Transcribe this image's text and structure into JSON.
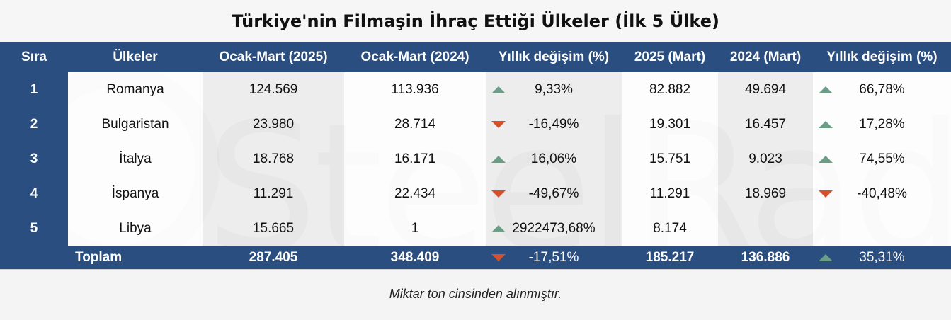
{
  "title": "Türkiye'nin Filmaşin İhraç Ettiği Ülkeler (İlk 5 Ülke)",
  "watermark": "SteelRadar",
  "headers": [
    "Sıra",
    "Ülkeler",
    "Ocak-Mart (2025)",
    "Ocak-Mart (2024)",
    "Yıllık değişim (%)",
    "2025 (Mart)",
    "2024 (Mart)",
    "Yıllık değişim (%)"
  ],
  "rows": [
    {
      "rank": "1",
      "country": "Romanya",
      "q2025": "124.569",
      "q2024": "113.936",
      "q_change": "9,33%",
      "q_dir": "up",
      "m2025": "82.882",
      "m2024": "49.694",
      "m_change": "66,78%",
      "m_dir": "up"
    },
    {
      "rank": "2",
      "country": "Bulgaristan",
      "q2025": "23.980",
      "q2024": "28.714",
      "q_change": "-16,49%",
      "q_dir": "down",
      "m2025": "19.301",
      "m2024": "16.457",
      "m_change": "17,28%",
      "m_dir": "up"
    },
    {
      "rank": "3",
      "country": "İtalya",
      "q2025": "18.768",
      "q2024": "16.171",
      "q_change": "16,06%",
      "q_dir": "up",
      "m2025": "15.751",
      "m2024": "9.023",
      "m_change": "74,55%",
      "m_dir": "up"
    },
    {
      "rank": "4",
      "country": "İspanya",
      "q2025": "11.291",
      "q2024": "22.434",
      "q_change": "-49,67%",
      "q_dir": "down",
      "m2025": "11.291",
      "m2024": "18.969",
      "m_change": "-40,48%",
      "m_dir": "down"
    },
    {
      "rank": "5",
      "country": "Libya",
      "q2025": "15.665",
      "q2024": "1",
      "q_change": "2922473,68%",
      "q_dir": "up",
      "m2025": "8.174",
      "m2024": "",
      "m_change": "",
      "m_dir": ""
    }
  ],
  "total": {
    "label": "Toplam",
    "q2025": "287.405",
    "q2024": "348.409",
    "q_change": "-17,51%",
    "q_dir": "down",
    "m2025": "185.217",
    "m2024": "136.886",
    "m_change": "35,31%",
    "m_dir": "up"
  },
  "note": "Miktar  ton cinsinden alınmıştır.",
  "colors": {
    "header_bg": "#2b4e80",
    "up": "#6a9e86",
    "down": "#d5502b"
  }
}
